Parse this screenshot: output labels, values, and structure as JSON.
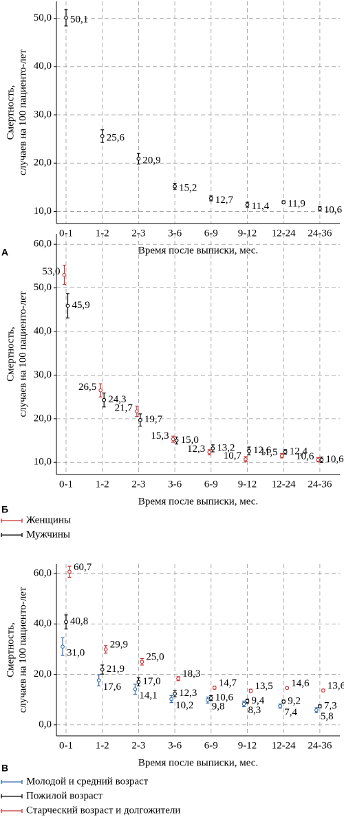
{
  "chart_data": [
    {
      "type": "errorbar",
      "panel_label": "А",
      "ylabel": [
        "Смертность,",
        "случаев на 100 пациенто-лет"
      ],
      "xlabel": "Время после выписки, мес.",
      "categories": [
        "0-1",
        "1-2",
        "2-3",
        "3-6",
        "6-9",
        "9-12",
        "12-24",
        "24-36"
      ],
      "color": "#000000",
      "values": [
        50.1,
        25.6,
        20.9,
        15.2,
        12.7,
        11.4,
        11.9,
        10.6
      ],
      "errors": [
        1.7,
        1.3,
        1.1,
        0.6,
        0.5,
        0.5,
        0.3,
        0.4
      ],
      "value_labels": [
        "50,1",
        "25,6",
        "20,9",
        "15,2",
        "12,7",
        "11,4",
        "11,9",
        "10,6"
      ],
      "ylim": [
        7.5,
        53.5
      ],
      "yticks": [
        {
          "value": 10,
          "label": "10,0"
        },
        {
          "value": 20,
          "label": "20,0"
        },
        {
          "value": 30,
          "label": "30,0"
        },
        {
          "value": 40,
          "label": "40,0"
        },
        {
          "value": 50,
          "label": "50,0"
        }
      ],
      "grid": true
    },
    {
      "type": "errorbar",
      "panel_label": "Б",
      "ylabel": [
        "Смертность,",
        "случаев на 100 пациенто-лет"
      ],
      "xlabel": "Время после выписки, мес.",
      "categories": [
        "0-1",
        "1-2",
        "2-3",
        "3-6",
        "6-9",
        "9-12",
        "12-24",
        "24-36"
      ],
      "series": [
        {
          "name": "Женщины",
          "color": "#c8302f",
          "values": [
            53.0,
            26.5,
            21.7,
            15.3,
            12.3,
            10.7,
            11.5,
            10.6
          ],
          "errors": [
            2.2,
            1.5,
            1.2,
            0.7,
            0.6,
            0.6,
            0.5,
            0.5
          ],
          "value_labels": [
            "53,0",
            "26,5",
            "21,7",
            "15,3",
            "12,3",
            "10,7",
            "11,5",
            "10,6"
          ]
        },
        {
          "name": "Мужчины",
          "color": "#000000",
          "values": [
            45.9,
            24.3,
            19.7,
            15.0,
            13.2,
            12.6,
            12.4,
            10.6
          ],
          "errors": [
            2.8,
            1.6,
            1.4,
            0.8,
            0.8,
            0.9,
            0.5,
            0.6
          ],
          "value_labels": [
            "45,9",
            "24,3",
            "19,7",
            "15,0",
            "13,2",
            "12,6",
            "12,4",
            "10,6"
          ]
        }
      ],
      "ylim": [
        7.2,
        62.4
      ],
      "yticks": [
        {
          "value": 10,
          "label": "10,0"
        },
        {
          "value": 20,
          "label": "20,0"
        },
        {
          "value": 30,
          "label": "30,0"
        },
        {
          "value": 40,
          "label": "40,0"
        },
        {
          "value": 50,
          "label": "50,0"
        },
        {
          "value": 60,
          "label": "60,0"
        }
      ],
      "grid": true
    },
    {
      "type": "errorbar",
      "panel_label": "В",
      "ylabel": [
        "Смертность,",
        "случаев на 100 пациенто-лет"
      ],
      "xlabel": "Время после выписки, мес.",
      "categories": [
        "0-1",
        "1-2",
        "2-3",
        "3-6",
        "6-9",
        "9-12",
        "12-24",
        "24-36"
      ],
      "series": [
        {
          "name": "Молодой и средний возраст",
          "color": "#2f6aa8",
          "values": [
            31.0,
            17.6,
            14.1,
            10.2,
            9.8,
            8.3,
            7.4,
            5.8
          ],
          "errors": [
            3.5,
            2.2,
            2.0,
            1.4,
            1.2,
            1.1,
            0.8,
            1.0
          ],
          "value_labels": [
            "31,0",
            "17,6",
            "14,1",
            "10,2",
            "9,8",
            "8,3",
            "7,4",
            "5,8"
          ]
        },
        {
          "name": "Пожилой возраст",
          "color": "#000000",
          "values": [
            40.8,
            21.9,
            17.0,
            12.3,
            10.6,
            9.4,
            9.2,
            7.3
          ],
          "errors": [
            2.8,
            1.8,
            1.6,
            1.2,
            1.0,
            0.8,
            0.6,
            0.6
          ],
          "value_labels": [
            "40,8",
            "21,9",
            "17,0",
            "12,3",
            "10,6",
            "9,4",
            "9,2",
            "7,3"
          ]
        },
        {
          "name": "Старческий возраст и долгожители",
          "color": "#c8302f",
          "values": [
            60.7,
            29.9,
            25.0,
            18.3,
            14.7,
            13.5,
            14.6,
            13.6
          ],
          "errors": [
            2.2,
            1.5,
            1.3,
            0.8,
            0.6,
            0.6,
            0.4,
            0.5
          ],
          "value_labels": [
            "60,7",
            "29,9",
            "25,0",
            "18,3",
            "14,7",
            "13,5",
            "14,6",
            "13,6"
          ]
        }
      ],
      "ylim": [
        -4.4,
        63.8
      ],
      "yticks": [
        {
          "value": 0,
          "label": "0,0"
        },
        {
          "value": 20,
          "label": "20,0"
        },
        {
          "value": 40,
          "label": "40,0"
        },
        {
          "value": 60,
          "label": "60,0"
        }
      ],
      "grid": true
    }
  ]
}
